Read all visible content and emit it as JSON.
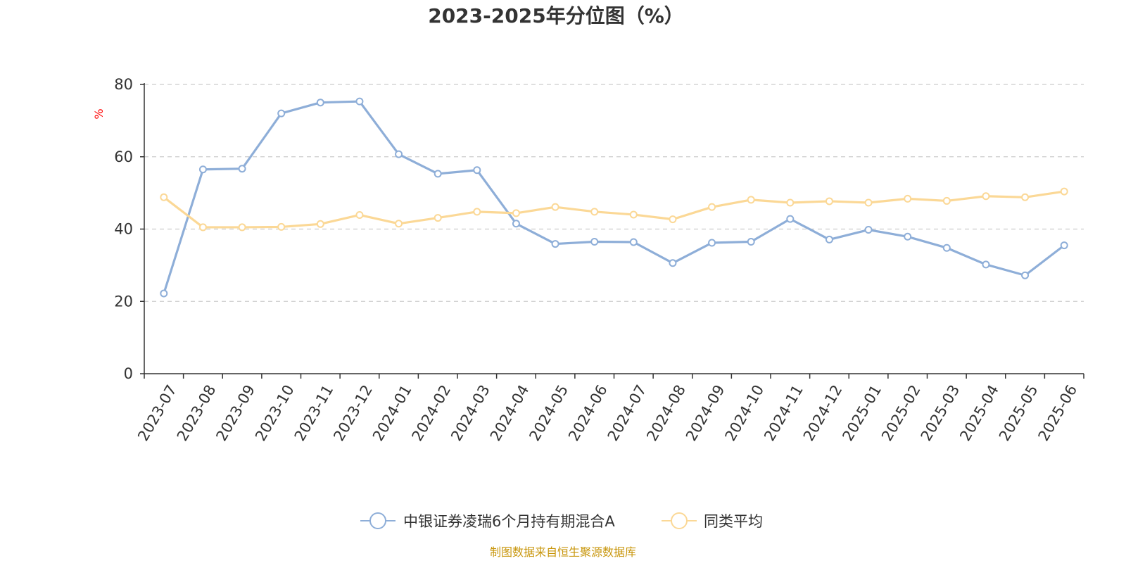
{
  "chart_data": {
    "type": "line",
    "title": "2023-2025年分位图（%）",
    "ylabel": "%",
    "xlabel": "",
    "ylim": [
      0,
      80
    ],
    "yticks": [
      0,
      20,
      40,
      60,
      80
    ],
    "grid": true,
    "legend_position": "bottom",
    "categories": [
      "2023-07",
      "2023-08",
      "2023-09",
      "2023-10",
      "2023-11",
      "2023-12",
      "2024-01",
      "2024-02",
      "2024-03",
      "2024-04",
      "2024-05",
      "2024-06",
      "2024-07",
      "2024-08",
      "2024-09",
      "2024-10",
      "2024-11",
      "2024-12",
      "2025-01",
      "2025-02",
      "2025-03",
      "2025-04",
      "2025-05",
      "2025-06"
    ],
    "series": [
      {
        "name": "中银证券凌瑞6个月持有期混合A",
        "color": "#8eaed8",
        "values": [
          22.2,
          56.5,
          56.7,
          72.0,
          75.0,
          75.3,
          60.7,
          55.3,
          56.3,
          41.5,
          35.9,
          36.5,
          36.4,
          30.6,
          36.2,
          36.5,
          42.8,
          37.1,
          39.8,
          37.9,
          34.8,
          30.2,
          27.2,
          35.5
        ]
      },
      {
        "name": "同类平均",
        "color": "#fbd896",
        "values": [
          48.8,
          40.5,
          40.5,
          40.6,
          41.4,
          43.9,
          41.5,
          43.1,
          44.8,
          44.4,
          46.1,
          44.8,
          44.0,
          42.7,
          46.1,
          48.1,
          47.3,
          47.7,
          47.3,
          48.4,
          47.8,
          49.1,
          48.8,
          50.4
        ]
      }
    ],
    "source": "制图数据来自恒生聚源数据库"
  }
}
